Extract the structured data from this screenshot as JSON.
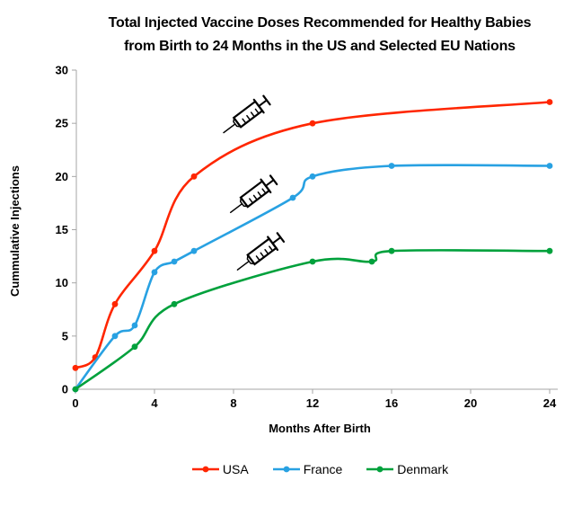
{
  "title": {
    "line1": "Total Injected Vaccine Doses Recommended for Healthy Babies",
    "line2": "from Birth to 24 Months in the US and Selected EU Nations"
  },
  "chart_data": {
    "type": "line",
    "title": "Total Injected Vaccine Doses Recommended for Healthy Babies from Birth to 24 Months in the US and Selected EU Nations",
    "xlabel": "Months After Birth",
    "ylabel": "Cummulative Injections",
    "xlim": [
      0,
      24
    ],
    "ylim": [
      0,
      30
    ],
    "x_ticks": [
      0,
      4,
      8,
      12,
      16,
      20,
      24
    ],
    "y_ticks": [
      0,
      5,
      10,
      15,
      20,
      25,
      30
    ],
    "grid": false,
    "smooth_lines": true,
    "legend_position": "bottom",
    "axis_color": "#a6a6a6",
    "series": [
      {
        "name": "USA",
        "color": "#ff2600",
        "points": [
          [
            0,
            2
          ],
          [
            1,
            3
          ],
          [
            2,
            8
          ],
          [
            4,
            13
          ],
          [
            6,
            20
          ],
          [
            12,
            25
          ],
          [
            24,
            27
          ]
        ]
      },
      {
        "name": "France",
        "color": "#28a1e2",
        "points": [
          [
            0,
            0
          ],
          [
            2,
            5
          ],
          [
            3,
            6
          ],
          [
            4,
            11
          ],
          [
            5,
            12
          ],
          [
            6,
            13
          ],
          [
            11,
            18
          ],
          [
            12,
            20
          ],
          [
            16,
            21
          ],
          [
            24,
            21
          ]
        ]
      },
      {
        "name": "Denmark",
        "color": "#00a13c",
        "points": [
          [
            0,
            0
          ],
          [
            3,
            4
          ],
          [
            5,
            8
          ],
          [
            12,
            12
          ],
          [
            15,
            12
          ],
          [
            16,
            13
          ],
          [
            24,
            13
          ]
        ]
      }
    ],
    "annotations": [
      {
        "icon": "syringe-icon",
        "x": 8.7,
        "y": 25.8,
        "rotation": -37
      },
      {
        "icon": "syringe-icon",
        "x": 9.05,
        "y": 18.3,
        "rotation": -37
      },
      {
        "icon": "syringe-icon",
        "x": 9.4,
        "y": 12.9,
        "rotation": -37
      }
    ]
  },
  "legend": {
    "items": [
      {
        "label": "USA",
        "color": "#ff2600"
      },
      {
        "label": "France",
        "color": "#28a1e2"
      },
      {
        "label": "Denmark",
        "color": "#00a13c"
      }
    ]
  }
}
